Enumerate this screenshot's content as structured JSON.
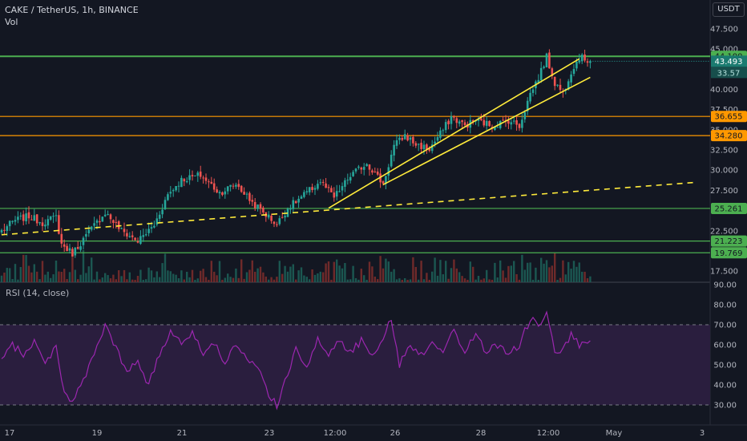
{
  "header": {
    "title": "CAKE / TetherUS, 1h, BINANCE",
    "vol_label": "Vol",
    "rsi_label": "RSI (14, close)",
    "currency": "USDT"
  },
  "colors": {
    "background": "#131722",
    "up": "#26a69a",
    "down": "#ef5350",
    "green_level": "#4caf50",
    "orange_level": "#ff9800",
    "trendline": "#ffeb3b",
    "rsi_line": "#9c27b0",
    "rsi_fill": "#2a1e3e"
  },
  "chart_data": {
    "type": "candlestick",
    "symbol": "CAKE / TetherUS",
    "interval": "1h",
    "exchange": "BINANCE",
    "x_tick_labels": [
      "17",
      "19",
      "21",
      "23",
      "12:00",
      "26",
      "28",
      "12:00",
      "May",
      "3"
    ],
    "y_tick_labels": [
      "47.500",
      "45.000",
      "40.000",
      "37.500",
      "35.000",
      "32.500",
      "30.000",
      "27.500",
      "22.500",
      "17.500"
    ],
    "y_range": [
      16.7,
      50.0
    ],
    "price_levels": [
      {
        "label": "44.100",
        "value": 44.1,
        "color": "green"
      },
      {
        "label": "36.655",
        "value": 36.655,
        "color": "orange"
      },
      {
        "label": "34.280",
        "value": 34.28,
        "color": "orange"
      },
      {
        "label": "25.261",
        "value": 25.261,
        "color": "green"
      },
      {
        "label": "21.223",
        "value": 21.223,
        "color": "green"
      },
      {
        "label": "19.769",
        "value": 19.769,
        "color": "green"
      }
    ],
    "last_price": {
      "label": "43.493",
      "value": 43.493
    },
    "volume_label": "33.57",
    "trendlines": [
      {
        "style": "dashed",
        "from": {
          "bar": 0,
          "price": 22.0
        },
        "to": {
          "bar": 255,
          "price": 28.5
        }
      },
      {
        "style": "solid",
        "from": {
          "bar": 120,
          "price": 25.3
        },
        "to": {
          "bar": 212,
          "price": 43.8
        }
      },
      {
        "style": "solid",
        "from": {
          "bar": 140,
          "price": 28.2
        },
        "to": {
          "bar": 216,
          "price": 41.5
        }
      }
    ],
    "key_points": [
      {
        "bar": 0,
        "price": 22.5
      },
      {
        "bar": 5,
        "price": 23.8
      },
      {
        "bar": 10,
        "price": 24.3
      },
      {
        "bar": 15,
        "price": 23.5
      },
      {
        "bar": 20,
        "price": 24.2
      },
      {
        "bar": 22,
        "price": 20.8
      },
      {
        "bar": 26,
        "price": 19.7
      },
      {
        "bar": 32,
        "price": 22.3
      },
      {
        "bar": 38,
        "price": 24.8
      },
      {
        "bar": 44,
        "price": 22.5
      },
      {
        "bar": 50,
        "price": 21.2
      },
      {
        "bar": 56,
        "price": 23.2
      },
      {
        "bar": 61,
        "price": 27.0
      },
      {
        "bar": 66,
        "price": 28.8
      },
      {
        "bar": 73,
        "price": 29.4
      },
      {
        "bar": 80,
        "price": 27.2
      },
      {
        "bar": 86,
        "price": 28.3
      },
      {
        "bar": 92,
        "price": 26.0
      },
      {
        "bar": 97,
        "price": 24.5
      },
      {
        "bar": 101,
        "price": 23.3
      },
      {
        "bar": 105,
        "price": 25.3
      },
      {
        "bar": 112,
        "price": 27.2
      },
      {
        "bar": 117,
        "price": 28.6
      },
      {
        "bar": 122,
        "price": 26.6
      },
      {
        "bar": 128,
        "price": 29.3
      },
      {
        "bar": 134,
        "price": 30.9
      },
      {
        "bar": 140,
        "price": 28.3
      },
      {
        "bar": 144,
        "price": 33.0
      },
      {
        "bar": 148,
        "price": 34.3
      },
      {
        "bar": 152,
        "price": 33.2
      },
      {
        "bar": 157,
        "price": 32.6
      },
      {
        "bar": 162,
        "price": 35.0
      },
      {
        "bar": 165,
        "price": 36.6
      },
      {
        "bar": 170,
        "price": 35.5
      },
      {
        "bar": 174,
        "price": 36.2
      },
      {
        "bar": 180,
        "price": 35.5
      },
      {
        "bar": 186,
        "price": 36.2
      },
      {
        "bar": 190,
        "price": 35.5
      },
      {
        "bar": 194,
        "price": 39.5
      },
      {
        "bar": 197,
        "price": 41.5
      },
      {
        "bar": 200,
        "price": 44.0
      },
      {
        "bar": 203,
        "price": 40.8
      },
      {
        "bar": 206,
        "price": 39.6
      },
      {
        "bar": 209,
        "price": 42.3
      },
      {
        "bar": 212,
        "price": 44.0
      },
      {
        "bar": 216,
        "price": 43.5
      }
    ],
    "rsi": {
      "label": "RSI (14, close)",
      "y_tick_labels": [
        "90.00",
        "80.00",
        "70.00",
        "60.00",
        "50.00",
        "40.00",
        "30.00"
      ],
      "y_range": [
        25,
        90
      ],
      "upper_band": 70,
      "lower_band": 30,
      "key_points": [
        {
          "bar": 0,
          "value": 52
        },
        {
          "bar": 4,
          "value": 60
        },
        {
          "bar": 8,
          "value": 55
        },
        {
          "bar": 12,
          "value": 62
        },
        {
          "bar": 16,
          "value": 50
        },
        {
          "bar": 20,
          "value": 60
        },
        {
          "bar": 23,
          "value": 36
        },
        {
          "bar": 26,
          "value": 32
        },
        {
          "bar": 30,
          "value": 42
        },
        {
          "bar": 34,
          "value": 55
        },
        {
          "bar": 38,
          "value": 70
        },
        {
          "bar": 42,
          "value": 58
        },
        {
          "bar": 46,
          "value": 46
        },
        {
          "bar": 50,
          "value": 52
        },
        {
          "bar": 54,
          "value": 40
        },
        {
          "bar": 58,
          "value": 55
        },
        {
          "bar": 62,
          "value": 67
        },
        {
          "bar": 66,
          "value": 62
        },
        {
          "bar": 70,
          "value": 66
        },
        {
          "bar": 74,
          "value": 56
        },
        {
          "bar": 78,
          "value": 60
        },
        {
          "bar": 82,
          "value": 52
        },
        {
          "bar": 86,
          "value": 60
        },
        {
          "bar": 90,
          "value": 52
        },
        {
          "bar": 94,
          "value": 48
        },
        {
          "bar": 98,
          "value": 36
        },
        {
          "bar": 101,
          "value": 29
        },
        {
          "bar": 104,
          "value": 41
        },
        {
          "bar": 108,
          "value": 58
        },
        {
          "bar": 112,
          "value": 50
        },
        {
          "bar": 116,
          "value": 62
        },
        {
          "bar": 120,
          "value": 55
        },
        {
          "bar": 124,
          "value": 63
        },
        {
          "bar": 128,
          "value": 56
        },
        {
          "bar": 132,
          "value": 62
        },
        {
          "bar": 136,
          "value": 56
        },
        {
          "bar": 140,
          "value": 63
        },
        {
          "bar": 143,
          "value": 73
        },
        {
          "bar": 146,
          "value": 50
        },
        {
          "bar": 150,
          "value": 60
        },
        {
          "bar": 154,
          "value": 55
        },
        {
          "bar": 158,
          "value": 62
        },
        {
          "bar": 162,
          "value": 57
        },
        {
          "bar": 166,
          "value": 67
        },
        {
          "bar": 170,
          "value": 56
        },
        {
          "bar": 174,
          "value": 66
        },
        {
          "bar": 178,
          "value": 56
        },
        {
          "bar": 182,
          "value": 60
        },
        {
          "bar": 186,
          "value": 55
        },
        {
          "bar": 190,
          "value": 60
        },
        {
          "bar": 194,
          "value": 73
        },
        {
          "bar": 197,
          "value": 70
        },
        {
          "bar": 200,
          "value": 77
        },
        {
          "bar": 203,
          "value": 55
        },
        {
          "bar": 206,
          "value": 57
        },
        {
          "bar": 209,
          "value": 65
        },
        {
          "bar": 212,
          "value": 60
        },
        {
          "bar": 216,
          "value": 62
        }
      ]
    }
  }
}
